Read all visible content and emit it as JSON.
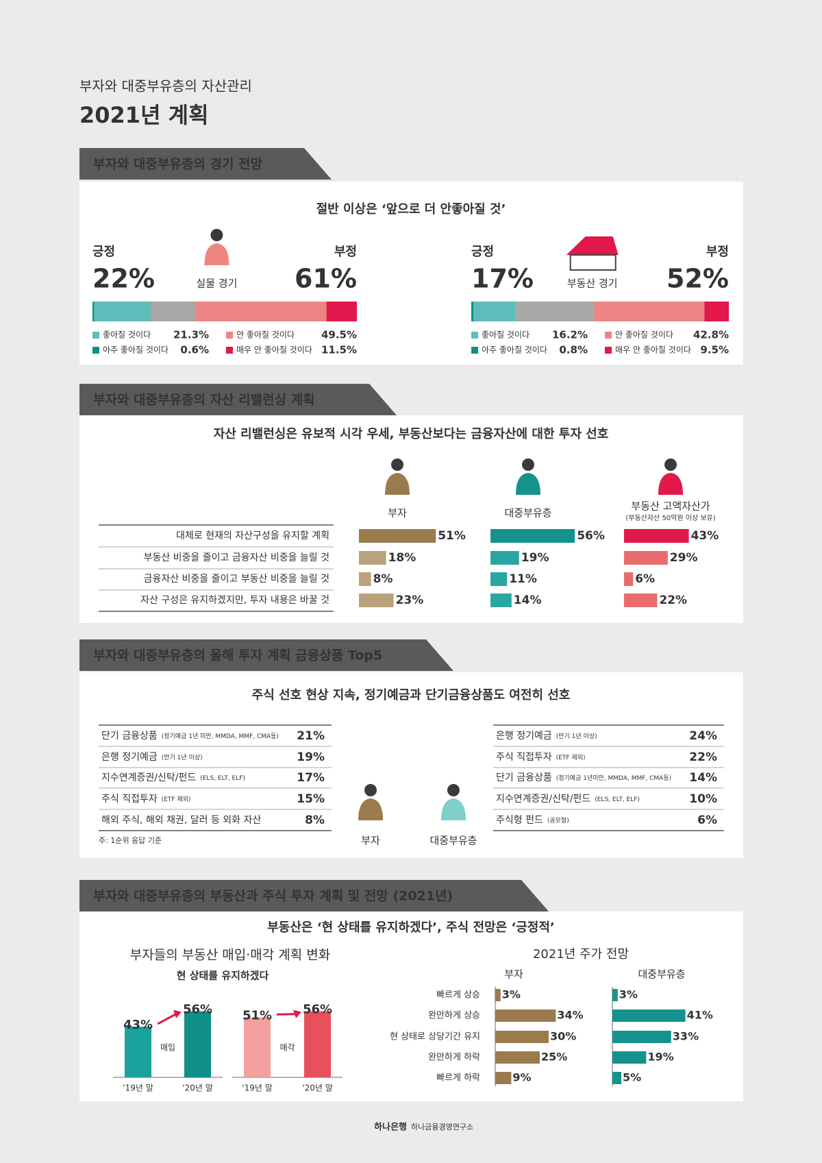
{
  "header": {
    "subtitle": "부자와 대중부유층의 자산관리",
    "title": "2021년 계획"
  },
  "outlook": {
    "heading": "부자와 대중부유층의 경기 전망",
    "headline": "절반 이상은 ‘앞으로 더 안좋아질 것’",
    "positive_label": "긍정",
    "negative_label": "부정",
    "panels": [
      {
        "name": "실물 경기",
        "positive": {
          "value": 22,
          "label": "22%"
        },
        "negative": {
          "value": 61,
          "label": "61%"
        },
        "segments": [
          {
            "name": "좋아질 것이다",
            "value": 21.3,
            "label": "21.3%",
            "color": "#5cbdbb"
          },
          {
            "name": "아주 좋아질 것이다",
            "value": 0.6,
            "label": "0.6%",
            "color": "#0f8f8a"
          },
          {
            "name": "안 좋아질 것이다",
            "value": 49.5,
            "label": "49.5%",
            "color": "#ee8582"
          },
          {
            "name": "매우 안 좋아질 것이다",
            "value": 11.5,
            "label": "11.5%",
            "color": "#e2174a"
          }
        ]
      },
      {
        "name": "부동산 경기",
        "positive": {
          "value": 17,
          "label": "17%"
        },
        "negative": {
          "value": 52,
          "label": "52%"
        },
        "segments": [
          {
            "name": "좋아질 것이다",
            "value": 16.2,
            "label": "16.2%",
            "color": "#5cbdbb"
          },
          {
            "name": "아주 좋아질 것이다",
            "value": 0.8,
            "label": "0.8%",
            "color": "#0f8f8a"
          },
          {
            "name": "안 좋아질 것이다",
            "value": 42.8,
            "label": "42.8%",
            "color": "#ee8582"
          },
          {
            "name": "매우 안 좋아질 것이다",
            "value": 9.5,
            "label": "9.5%",
            "color": "#e2174a"
          }
        ]
      }
    ]
  },
  "rebalancing": {
    "heading": "부자와 대중부유층의 자산 리밸런싱 계획",
    "headline": "자산 리밸런싱은 유보적 시각 우세, 부동산보다는 금융자산에 대한 투자 선호",
    "rows": [
      "대체로 현재의 자산구성을 유지할 계획",
      "부동산 비중을 줄이고 금융자산 비중을 늘릴 것",
      "금융자산 비중을 줄이고 부동산 비중을 늘릴 것",
      "자산 구성은 유지하겠지만, 투자 내용은 바꿀 것"
    ],
    "groups": [
      {
        "name": "부자",
        "colors": [
          "#9b7b4d",
          "#b9a27c",
          "#b9a27c",
          "#b9a27c"
        ],
        "values": [
          {
            "value": 51,
            "label": "51%"
          },
          {
            "value": 18,
            "label": "18%"
          },
          {
            "value": 8,
            "label": "8%"
          },
          {
            "value": 23,
            "label": "23%"
          }
        ]
      },
      {
        "name": "대중부유층",
        "colors": [
          "#15928d",
          "#2aa6a2",
          "#2aa6a2",
          "#2aa6a2"
        ],
        "values": [
          {
            "value": 56,
            "label": "56%"
          },
          {
            "value": 19,
            "label": "19%"
          },
          {
            "value": 11,
            "label": "11%"
          },
          {
            "value": 14,
            "label": "14%"
          }
        ]
      },
      {
        "name": "부동산 고액자산가",
        "note": "(부동산자산 50억원 이상 보유)",
        "colors": [
          "#e2174a",
          "#ea6b6e",
          "#ea6b6e",
          "#ea6b6e"
        ],
        "values": [
          {
            "value": 43,
            "label": "43%"
          },
          {
            "value": 29,
            "label": "29%"
          },
          {
            "value": 6,
            "label": "6%"
          },
          {
            "value": 22,
            "label": "22%"
          }
        ]
      }
    ]
  },
  "top5": {
    "heading": "부자와 대중부유층의 올해 투자 계획 금융상품 Top5",
    "headline": "주식 선호 현상 지속, 정기예금과 단기금융상품도 여전히 선호",
    "lists": [
      {
        "name": "부자",
        "color": "#9b7b4d",
        "items": [
          {
            "name": "단기 금융상품",
            "note": "(정기예금 1년 미만, MMDA, MMF, CMA등)",
            "value": 21,
            "label": "21%"
          },
          {
            "name": "은행 정기예금",
            "note": "(만기 1년 이상)",
            "value": 19,
            "label": "19%"
          },
          {
            "name": "지수연계증권/신탁/펀드",
            "note": "(ELS, ELT, ELF)",
            "value": 17,
            "label": "17%"
          },
          {
            "name": "주식 직접투자",
            "note": "(ETF 제외)",
            "value": 15,
            "label": "15%"
          },
          {
            "name": "해외 주식, 해외 채권, 달러 등 외화 자산",
            "value": 8,
            "label": "8%"
          }
        ]
      },
      {
        "name": "대중부유층",
        "color": "#15928d",
        "items": [
          {
            "name": "은행 정기예금",
            "note": "(만기 1년 이상)",
            "value": 24,
            "label": "24%"
          },
          {
            "name": "주식 직접투자",
            "note": "(ETF 제외)",
            "value": 22,
            "label": "22%"
          },
          {
            "name": "단기 금융상품",
            "note": "(정기예금 1년미만, MMDA, MMF, CMA등)",
            "value": 14,
            "label": "14%"
          },
          {
            "name": "지수연계증권/신탁/펀드",
            "note": "(ELS, ELT, ELF)",
            "value": 10,
            "label": "10%"
          },
          {
            "name": "주식형 펀드",
            "note": "(공모형)",
            "value": 6,
            "label": "6%"
          }
        ]
      }
    ],
    "footnote": "주: 1순위 응답 기준"
  },
  "plans": {
    "heading": "부자와 대중부유층의 부동산과 주식 투자 계획 및 전망 (2021년)",
    "headline": "부동산은 ‘현 상태를 유지하겠다’, 주식 전망은 ‘긍정적’",
    "realestate": {
      "title": "부자들의 부동산 매입·매각 계획 변화",
      "subtitle": "현 상태를 유지하겠다",
      "periods": [
        "'19년 말",
        "'20년 말"
      ],
      "groups": [
        {
          "name": "매입",
          "colors": [
            "#1aa29c",
            "#0f8f88"
          ],
          "values": [
            {
              "value": 43,
              "label": "43%"
            },
            {
              "value": 56,
              "label": "56%"
            }
          ]
        },
        {
          "name": "매각",
          "colors": [
            "#f2a19e",
            "#e8505c"
          ],
          "values": [
            {
              "value": 51,
              "label": "51%"
            },
            {
              "value": 56,
              "label": "56%"
            }
          ]
        }
      ]
    },
    "stocks": {
      "title": "2021년 주가 전망",
      "categories": [
        "빠르게 상승",
        "완만하게 상승",
        "현 상태로 상당기간 유지",
        "완만하게 하락",
        "빠르게 하락"
      ],
      "series": [
        {
          "name": "부자",
          "color": "#9b7b4d",
          "values": [
            {
              "value": 3,
              "label": "3%"
            },
            {
              "value": 34,
              "label": "34%"
            },
            {
              "value": 30,
              "label": "30%"
            },
            {
              "value": 25,
              "label": "25%"
            },
            {
              "value": 9,
              "label": "9%"
            }
          ]
        },
        {
          "name": "대중부유층",
          "color": "#15928d",
          "values": [
            {
              "value": 3,
              "label": "3%"
            },
            {
              "value": 41,
              "label": "41%"
            },
            {
              "value": 33,
              "label": "33%"
            },
            {
              "value": 19,
              "label": "19%"
            },
            {
              "value": 5,
              "label": "5%"
            }
          ]
        }
      ]
    }
  },
  "footer": {
    "bank": "하나은행",
    "institute": "하나금융경영연구소"
  }
}
